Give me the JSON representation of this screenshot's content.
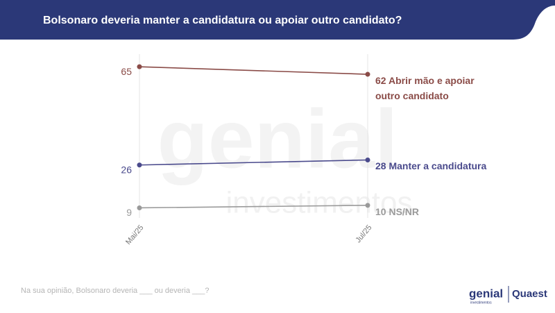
{
  "header": {
    "title": "Bolsonaro deveria manter a candidatura ou apoiar outro candidato?"
  },
  "chart_data": {
    "type": "line",
    "categories": [
      "Mai/25",
      "Jul/25"
    ],
    "series": [
      {
        "name": "Abrir mão e apoiar outro candidato",
        "color": "#8a4b47",
        "values": [
          65,
          62
        ]
      },
      {
        "name": "Manter a candidatura",
        "color": "#4a4a8c",
        "values": [
          26,
          28
        ]
      },
      {
        "name": "NS/NR",
        "color": "#9a9a9a",
        "values": [
          9,
          10
        ]
      }
    ],
    "ylim": [
      5,
      70
    ]
  },
  "watermark": {
    "word": "genial",
    "sub": "investimentos"
  },
  "footer": {
    "question": "Na sua opinião, Bolsonaro deveria ___ ou deveria ___?"
  },
  "logos": {
    "genial": "genial",
    "genial_sub": "investimentos",
    "quaest": "Quaest"
  }
}
